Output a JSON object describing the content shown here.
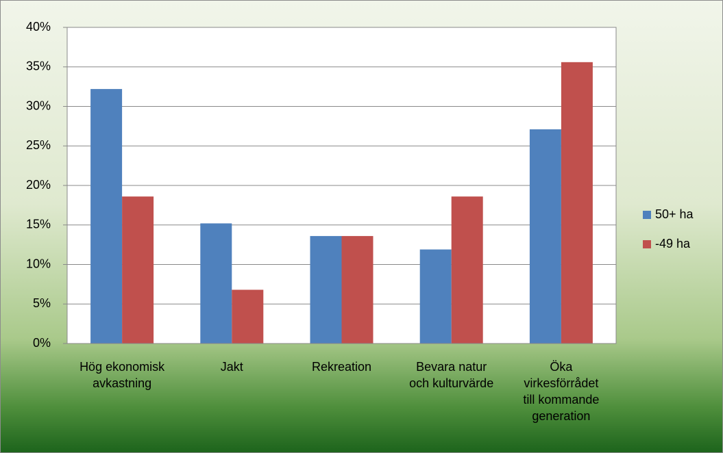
{
  "chart_data": {
    "type": "bar",
    "categories": [
      "Hög ekonomisk avkastning",
      "Jakt",
      "Rekreation",
      "Bevara natur och kulturvärde",
      "Öka virkesförrådet till kommande generation"
    ],
    "series": [
      {
        "name": "50+ ha",
        "color": "#4f81bd",
        "values": [
          32.2,
          15.2,
          13.6,
          11.9,
          27.1
        ]
      },
      {
        "name": "-49 ha",
        "color": "#c0504d",
        "values": [
          18.6,
          6.8,
          13.6,
          18.6,
          35.6
        ]
      }
    ],
    "ylim": [
      0,
      40
    ],
    "yticks": [
      {
        "value": 0,
        "label": "0%"
      },
      {
        "value": 5,
        "label": "5%"
      },
      {
        "value": 10,
        "label": "10%"
      },
      {
        "value": 15,
        "label": "15%"
      },
      {
        "value": 20,
        "label": "20%"
      },
      {
        "value": 25,
        "label": "25%"
      },
      {
        "value": 30,
        "label": "30%"
      },
      {
        "value": 35,
        "label": "35%"
      },
      {
        "value": 40,
        "label": "40%"
      }
    ],
    "grid": true,
    "legend": "right"
  }
}
